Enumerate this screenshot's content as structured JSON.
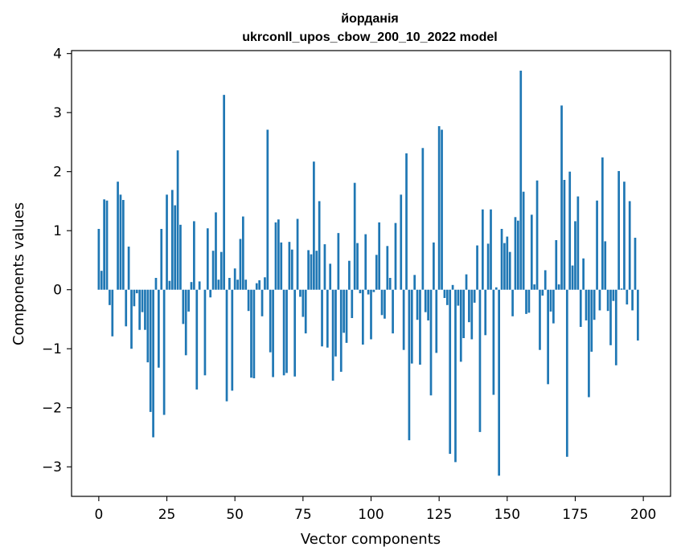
{
  "chart_data": {
    "type": "bar",
    "title_line1": "йорданія",
    "title_line2": "ukrconll_upos_cbow_200_10_2022 model",
    "xlabel": "Vector components",
    "ylabel": "Components values",
    "xlim": [
      -10,
      210
    ],
    "ylim": [
      -3.5,
      4.05
    ],
    "xticks": [
      0,
      25,
      50,
      75,
      100,
      125,
      150,
      175,
      200
    ],
    "yticks": [
      -3,
      -2,
      -1,
      0,
      1,
      2,
      3,
      4
    ],
    "ytick_labels": [
      "−3",
      "−2",
      "−1",
      "0",
      "1",
      "2",
      "3",
      "4"
    ],
    "bar_color": "#1f77b4",
    "values": [
      1.03,
      0.32,
      1.53,
      1.51,
      -0.26,
      -0.79,
      0.0,
      1.83,
      1.61,
      1.52,
      -0.62,
      0.73,
      -1.0,
      -0.28,
      -0.06,
      -0.68,
      -0.38,
      -0.68,
      -1.23,
      -2.07,
      -2.5,
      0.2,
      -1.32,
      1.03,
      -2.12,
      1.61,
      0.15,
      1.69,
      1.43,
      2.36,
      1.1,
      -0.58,
      -1.11,
      -0.37,
      0.13,
      1.16,
      -1.69,
      0.14,
      0.0,
      -1.45,
      1.04,
      -0.13,
      0.66,
      1.31,
      0.17,
      0.64,
      3.3,
      -1.89,
      0.2,
      -1.71,
      0.36,
      0.17,
      0.86,
      1.24,
      0.17,
      -0.36,
      -1.49,
      -1.5,
      0.11,
      0.16,
      -0.45,
      0.21,
      2.71,
      -1.06,
      -1.48,
      1.14,
      1.19,
      0.8,
      -1.45,
      -1.41,
      0.81,
      0.68,
      -1.47,
      1.2,
      -0.12,
      -0.46,
      -0.74,
      0.67,
      0.6,
      2.17,
      0.66,
      1.5,
      -0.96,
      0.77,
      -0.98,
      0.44,
      -1.54,
      -1.13,
      0.96,
      -1.39,
      -0.73,
      -0.9,
      0.49,
      -0.48,
      1.81,
      0.79,
      -0.06,
      -0.93,
      0.94,
      -0.08,
      -0.84,
      -0.04,
      0.59,
      1.14,
      -0.43,
      -0.49,
      0.74,
      0.2,
      -0.74,
      1.13,
      0.0,
      1.61,
      -1.02,
      2.31,
      -2.55,
      -1.25,
      0.25,
      -0.51,
      -1.27,
      2.4,
      -0.38,
      -0.52,
      -1.79,
      0.8,
      -1.07,
      2.77,
      2.71,
      -0.14,
      -0.26,
      -2.78,
      0.08,
      -2.92,
      -0.27,
      -1.22,
      -0.82,
      0.26,
      -0.55,
      -0.84,
      -0.22,
      0.75,
      -2.41,
      1.36,
      -0.77,
      0.78,
      1.36,
      -1.78,
      0.04,
      -3.15,
      1.03,
      0.79,
      0.9,
      0.64,
      -0.45,
      1.23,
      1.17,
      3.71,
      1.66,
      -0.41,
      -0.39,
      1.27,
      0.09,
      1.85,
      -1.02,
      -0.1,
      0.33,
      -1.6,
      -0.37,
      -0.57,
      0.84,
      0.09,
      3.12,
      1.86,
      -2.83,
      2.0,
      0.41,
      1.16,
      1.58,
      -0.63,
      0.53,
      -0.52,
      -1.82,
      -1.05,
      -0.51,
      1.51,
      -0.35,
      2.24,
      0.82,
      -0.36,
      -0.94,
      -0.19,
      -1.28,
      2.01,
      0.02,
      1.83,
      -0.25,
      1.5,
      -0.35,
      0.88,
      -0.86
    ]
  }
}
